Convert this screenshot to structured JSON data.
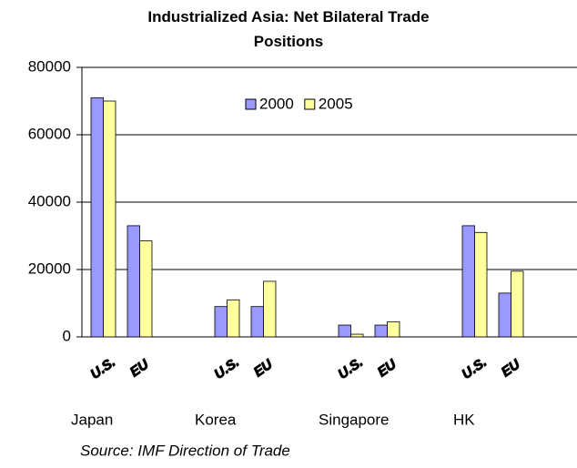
{
  "chart_data": {
    "type": "bar",
    "title": "Industrialized Asia: Net Bilateral Trade Positions",
    "categories": [
      "U.S.",
      "EU",
      "U.S.",
      "EU",
      "U.S.",
      "EU",
      "U.S.",
      "EU"
    ],
    "groups": [
      "Japan",
      "Korea",
      "Singapore",
      "HK"
    ],
    "series": [
      {
        "name": "2000",
        "color": "#9999ff",
        "values": [
          71000,
          33000,
          9000,
          9000,
          3500,
          3500,
          33000,
          13000
        ]
      },
      {
        "name": "2005",
        "color": "#ffffa0",
        "values": [
          70000,
          28500,
          11000,
          16500,
          800,
          4500,
          31000,
          19500
        ]
      }
    ],
    "ylim": [
      0,
      80000
    ],
    "yticks": [
      0,
      20000,
      40000,
      60000,
      80000
    ],
    "grid": true,
    "source": "Source: IMF Direction of Trade"
  }
}
